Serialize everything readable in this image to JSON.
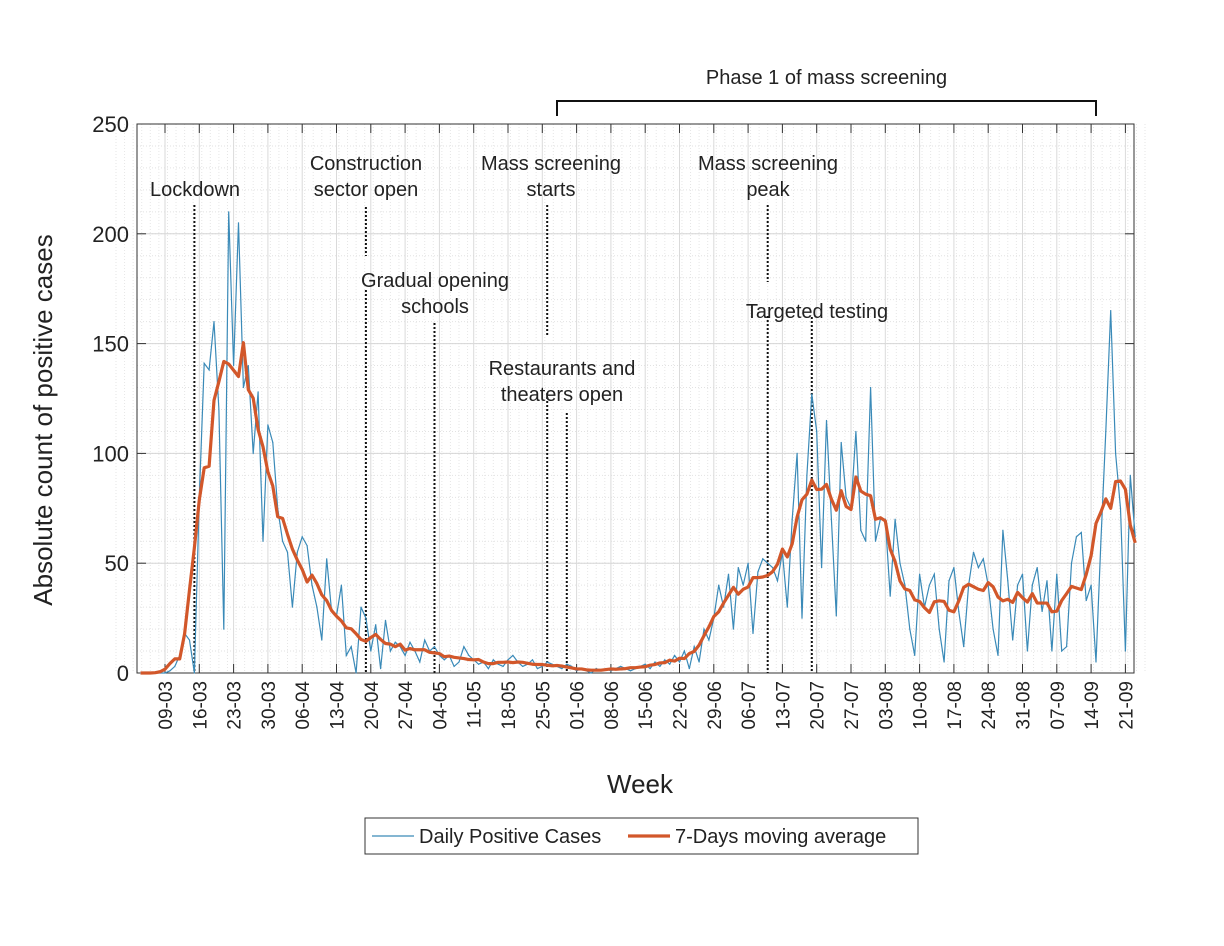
{
  "chart_data": {
    "type": "line",
    "title": "",
    "xlabel": "Week",
    "ylabel": "Absolute count of positive cases",
    "ylim": [
      0,
      250
    ],
    "yticks": [
      0,
      50,
      100,
      150,
      200,
      250
    ],
    "start_date": "04-03",
    "xlim_days": [
      -6,
      207
    ],
    "xtick_labels": [
      "09-03",
      "16-03",
      "23-03",
      "30-03",
      "06-04",
      "13-04",
      "20-04",
      "27-04",
      "04-05",
      "11-05",
      "18-05",
      "25-05",
      "01-06",
      "08-06",
      "15-06",
      "22-06",
      "29-06",
      "06-07",
      "13-07",
      "20-07",
      "27-07",
      "03-08",
      "10-08",
      "17-08",
      "24-08",
      "31-08",
      "07-09",
      "14-09",
      "21-09"
    ],
    "xtick_first_day": 5,
    "xtick_step_days": 7,
    "grid": true,
    "legend": {
      "placement": "bottom-center",
      "entries": [
        "Daily Positive Cases",
        "7-Days moving average"
      ]
    },
    "series": [
      {
        "name": "Daily Positive Cases",
        "color": "#3a8ab8",
        "values": [
          0,
          0,
          0,
          0,
          0,
          0,
          1,
          3,
          8,
          18,
          15,
          0,
          80,
          141,
          138,
          160,
          120,
          20,
          210,
          140,
          205,
          130,
          140,
          100,
          128,
          60,
          113,
          105,
          75,
          60,
          55,
          30,
          55,
          62,
          58,
          40,
          30,
          15,
          52,
          28,
          26,
          40,
          8,
          12,
          0,
          30,
          25,
          10,
          22,
          2,
          24,
          10,
          14,
          12,
          8,
          14,
          10,
          5,
          15,
          10,
          12,
          8,
          6,
          8,
          3,
          5,
          12,
          8,
          6,
          4,
          5,
          2,
          6,
          4,
          3,
          6,
          8,
          5,
          3,
          4,
          6,
          2,
          3,
          5,
          4,
          3,
          2,
          4,
          3,
          1,
          2,
          1,
          0,
          2,
          1,
          2,
          1,
          2,
          3,
          2,
          1,
          2,
          3,
          4,
          2,
          5,
          3,
          6,
          4,
          8,
          5,
          10,
          2,
          12,
          5,
          20,
          15,
          25,
          40,
          30,
          45,
          20,
          48,
          40,
          50,
          18,
          46,
          52,
          50,
          48,
          42,
          55,
          30,
          70,
          100,
          25,
          90,
          127,
          110,
          48,
          115,
          70,
          26,
          105,
          80,
          75,
          110,
          65,
          60,
          130,
          60,
          70,
          70,
          35,
          70,
          50,
          40,
          20,
          8,
          45,
          30,
          40,
          45,
          20,
          5,
          42,
          48,
          28,
          12,
          40,
          55,
          48,
          52,
          40,
          20,
          8,
          65,
          42,
          15,
          40,
          45,
          10,
          40,
          48,
          28,
          42,
          10,
          45,
          10,
          12,
          50,
          62,
          64,
          33,
          40,
          5,
          60,
          110,
          165,
          100,
          75,
          10,
          90,
          62
        ]
      },
      {
        "name": "7-Days moving average",
        "color": "#d2572a",
        "window": 7
      }
    ],
    "annotations": [
      {
        "day": 11,
        "label": [
          "Lockdown"
        ]
      },
      {
        "day": 46,
        "label": [
          "Construction",
          "sector open"
        ]
      },
      {
        "day": 60,
        "label": [
          "Gradual opening",
          "schools"
        ]
      },
      {
        "day": 83,
        "label": [
          "Mass screening",
          "starts"
        ]
      },
      {
        "day": 87,
        "label": [
          "Restaurants and",
          "theaters open"
        ]
      },
      {
        "day": 128,
        "label": [
          "Mass screening",
          "peak"
        ]
      },
      {
        "day": 137,
        "label": [
          "Targeted testing"
        ]
      }
    ],
    "period": {
      "label": "Phase 1 of mass screening",
      "start_day": 85,
      "end_day": 195
    }
  }
}
